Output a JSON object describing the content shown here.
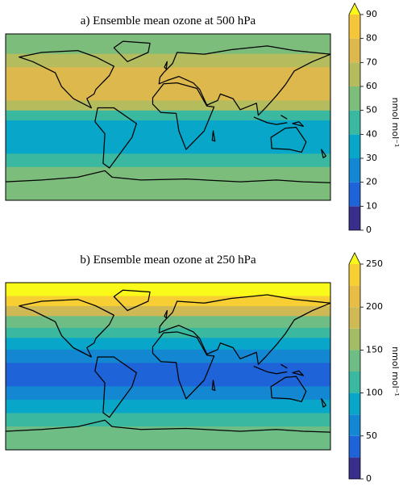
{
  "panels": [
    {
      "title": "a) Ensemble mean ozone at 500 hPa",
      "colorbar": {
        "label": "nmol mol⁻¹",
        "ticks": [
          0,
          10,
          20,
          30,
          40,
          50,
          60,
          70,
          80,
          90
        ],
        "levels": [
          0,
          10,
          20,
          30,
          40,
          50,
          60,
          70,
          80,
          90
        ],
        "colors": [
          "#3a2e8c",
          "#1f63d8",
          "#1487d2",
          "#08a6c8",
          "#3bb8a0",
          "#7dbd7c",
          "#b5bc5e",
          "#dcb84d",
          "#f5c63a",
          "#f9f91a"
        ]
      }
    },
    {
      "title": "b) Ensemble mean ozone at 250 hPa",
      "colorbar": {
        "label": "nmol mol⁻¹",
        "ticks": [
          0,
          50,
          100,
          150,
          200,
          250
        ],
        "levels": [
          0,
          25,
          50,
          75,
          100,
          125,
          150,
          175,
          200,
          225,
          250
        ],
        "colors": [
          "#3a2e8c",
          "#1f63d8",
          "#1487d2",
          "#08a6c8",
          "#3bb8a0",
          "#6dbd84",
          "#a5bc66",
          "#cfb955",
          "#e8bd46",
          "#f8cf33",
          "#f9f91a"
        ]
      }
    }
  ]
}
